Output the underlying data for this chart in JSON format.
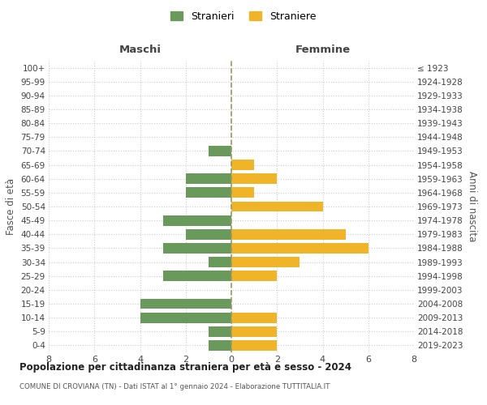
{
  "age_groups": [
    "0-4",
    "5-9",
    "10-14",
    "15-19",
    "20-24",
    "25-29",
    "30-34",
    "35-39",
    "40-44",
    "45-49",
    "50-54",
    "55-59",
    "60-64",
    "65-69",
    "70-74",
    "75-79",
    "80-84",
    "85-89",
    "90-94",
    "95-99",
    "100+"
  ],
  "birth_years": [
    "2019-2023",
    "2014-2018",
    "2009-2013",
    "2004-2008",
    "1999-2003",
    "1994-1998",
    "1989-1993",
    "1984-1988",
    "1979-1983",
    "1974-1978",
    "1969-1973",
    "1964-1968",
    "1959-1963",
    "1954-1958",
    "1949-1953",
    "1944-1948",
    "1939-1943",
    "1934-1938",
    "1929-1933",
    "1924-1928",
    "≤ 1923"
  ],
  "stranieri": [
    1,
    1,
    4,
    4,
    0,
    3,
    1,
    3,
    2,
    3,
    0,
    2,
    2,
    0,
    1,
    0,
    0,
    0,
    0,
    0,
    0
  ],
  "straniere": [
    2,
    2,
    2,
    0,
    0,
    2,
    3,
    6,
    5,
    0,
    4,
    1,
    2,
    1,
    0,
    0,
    0,
    0,
    0,
    0,
    0
  ],
  "color_stranieri": "#6a9a5b",
  "color_straniere": "#f0b429",
  "title": "Popolazione per cittadinanza straniera per età e sesso - 2024",
  "subtitle": "COMUNE DI CROVIANA (TN) - Dati ISTAT al 1° gennaio 2024 - Elaborazione TUTTITALIA.IT",
  "xlabel_left": "Maschi",
  "xlabel_right": "Femmine",
  "ylabel_left": "Fasce di età",
  "ylabel_right": "Anni di nascita",
  "legend_stranieri": "Stranieri",
  "legend_straniere": "Straniere",
  "xlim": 8,
  "background_color": "#ffffff",
  "grid_color": "#cccccc"
}
